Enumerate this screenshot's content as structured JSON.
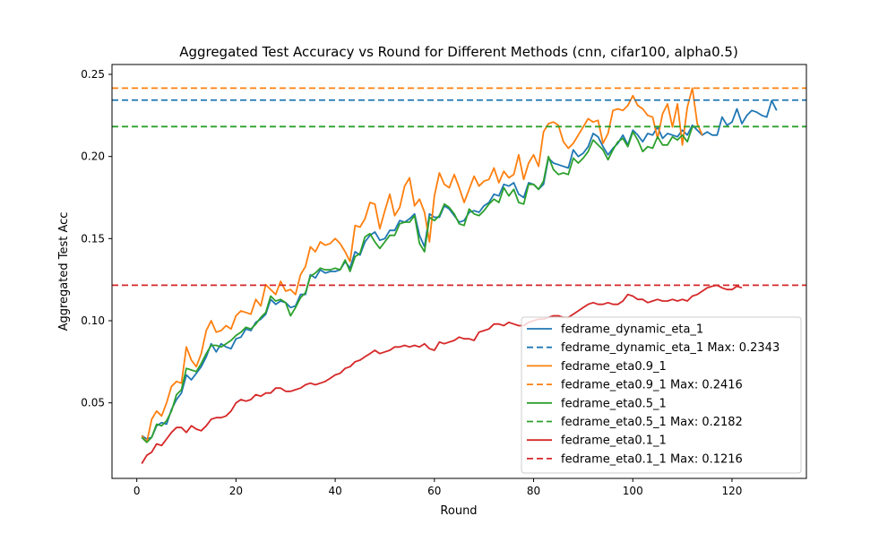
{
  "chart_data": {
    "type": "line",
    "title": "Aggregated Test Accuracy vs Round for Different Methods (cnn, cifar100, alpha0.5)",
    "xlabel": "Round",
    "ylabel": "Aggregated Test Acc",
    "xlim": [
      -5,
      135
    ],
    "ylim": [
      0.004,
      0.256
    ],
    "xticks": [
      0,
      20,
      40,
      60,
      80,
      100,
      120
    ],
    "yticks": [
      0.05,
      0.1,
      0.15,
      0.2,
      0.25
    ],
    "ytick_labels": [
      "0.05",
      "0.10",
      "0.15",
      "0.20",
      "0.25"
    ],
    "legend_position": "lower-right",
    "grid": false,
    "series": [
      {
        "name": "fedrame_dynamic_eta_1",
        "color": "#1f77b4",
        "max_label": "fedrame_dynamic_eta_1 Max: 0.2343",
        "max": 0.2343,
        "y": [
          0.03,
          0.028,
          0.029,
          0.036,
          0.038,
          0.037,
          0.046,
          0.052,
          0.056,
          0.067,
          0.064,
          0.068,
          0.072,
          0.078,
          0.086,
          0.081,
          0.086,
          0.084,
          0.083,
          0.089,
          0.09,
          0.095,
          0.094,
          0.099,
          0.101,
          0.104,
          0.113,
          0.11,
          0.112,
          0.111,
          0.108,
          0.109,
          0.116,
          0.116,
          0.128,
          0.126,
          0.131,
          0.129,
          0.13,
          0.13,
          0.131,
          0.136,
          0.132,
          0.142,
          0.14,
          0.148,
          0.152,
          0.154,
          0.149,
          0.15,
          0.155,
          0.155,
          0.161,
          0.16,
          0.162,
          0.165,
          0.152,
          0.145,
          0.165,
          0.163,
          0.163,
          0.17,
          0.168,
          0.164,
          0.16,
          0.161,
          0.166,
          0.167,
          0.166,
          0.17,
          0.172,
          0.177,
          0.176,
          0.183,
          0.182,
          0.184,
          0.177,
          0.175,
          0.184,
          0.183,
          0.18,
          0.183,
          0.199,
          0.196,
          0.195,
          0.194,
          0.193,
          0.204,
          0.2,
          0.202,
          0.206,
          0.214,
          0.212,
          0.206,
          0.201,
          0.205,
          0.208,
          0.213,
          0.207,
          0.216,
          0.213,
          0.209,
          0.214,
          0.213,
          0.218,
          0.211,
          0.214,
          0.213,
          0.212,
          0.216,
          0.213,
          0.219,
          0.216,
          0.213,
          0.215,
          0.213,
          0.213,
          0.224,
          0.219,
          0.221,
          0.229,
          0.22,
          0.225,
          0.228,
          0.227,
          0.225,
          0.224,
          0.234,
          0.228
        ]
      },
      {
        "name": "fedrame_eta0.9_1",
        "color": "#ff7f0e",
        "max_label": "fedrame_eta0.9_1 Max: 0.2416",
        "max": 0.2416,
        "y": [
          0.03,
          0.026,
          0.04,
          0.045,
          0.042,
          0.05,
          0.06,
          0.063,
          0.062,
          0.084,
          0.076,
          0.072,
          0.08,
          0.094,
          0.1,
          0.093,
          0.094,
          0.097,
          0.095,
          0.103,
          0.106,
          0.105,
          0.104,
          0.113,
          0.109,
          0.122,
          0.119,
          0.116,
          0.124,
          0.118,
          0.119,
          0.116,
          0.128,
          0.133,
          0.145,
          0.142,
          0.148,
          0.146,
          0.147,
          0.15,
          0.147,
          0.142,
          0.136,
          0.158,
          0.157,
          0.162,
          0.172,
          0.171,
          0.156,
          0.167,
          0.177,
          0.164,
          0.169,
          0.182,
          0.187,
          0.17,
          0.174,
          0.166,
          0.148,
          0.176,
          0.19,
          0.183,
          0.181,
          0.189,
          0.181,
          0.172,
          0.18,
          0.188,
          0.182,
          0.185,
          0.186,
          0.193,
          0.184,
          0.191,
          0.187,
          0.189,
          0.201,
          0.186,
          0.196,
          0.201,
          0.194,
          0.215,
          0.22,
          0.221,
          0.219,
          0.209,
          0.205,
          0.208,
          0.213,
          0.218,
          0.223,
          0.221,
          0.222,
          0.208,
          0.214,
          0.228,
          0.229,
          0.228,
          0.231,
          0.237,
          0.231,
          0.229,
          0.225,
          0.224,
          0.211,
          0.226,
          0.232,
          0.218,
          0.232,
          0.207,
          0.23,
          0.2416,
          0.22,
          0.213
        ]
      },
      {
        "name": "fedrame_eta0.5_1",
        "color": "#2ca02c",
        "max_label": "fedrame_eta0.5_1 Max: 0.2182",
        "max": 0.2182,
        "y": [
          0.029,
          0.026,
          0.029,
          0.037,
          0.036,
          0.039,
          0.045,
          0.055,
          0.058,
          0.071,
          0.07,
          0.069,
          0.074,
          0.08,
          0.085,
          0.085,
          0.084,
          0.086,
          0.088,
          0.091,
          0.093,
          0.096,
          0.095,
          0.098,
          0.102,
          0.105,
          0.115,
          0.112,
          0.113,
          0.111,
          0.103,
          0.108,
          0.114,
          0.117,
          0.127,
          0.129,
          0.132,
          0.131,
          0.131,
          0.132,
          0.131,
          0.137,
          0.13,
          0.139,
          0.141,
          0.151,
          0.153,
          0.148,
          0.144,
          0.148,
          0.152,
          0.152,
          0.159,
          0.16,
          0.16,
          0.164,
          0.147,
          0.142,
          0.163,
          0.161,
          0.164,
          0.171,
          0.169,
          0.165,
          0.159,
          0.158,
          0.168,
          0.165,
          0.164,
          0.167,
          0.171,
          0.174,
          0.172,
          0.181,
          0.176,
          0.18,
          0.172,
          0.171,
          0.183,
          0.183,
          0.18,
          0.185,
          0.2,
          0.192,
          0.189,
          0.19,
          0.189,
          0.199,
          0.196,
          0.199,
          0.203,
          0.21,
          0.207,
          0.204,
          0.198,
          0.204,
          0.209,
          0.211,
          0.206,
          0.215,
          0.21,
          0.203,
          0.206,
          0.205,
          0.212,
          0.207,
          0.207,
          0.212,
          0.21,
          0.213,
          0.209,
          0.218,
          0.2182
        ]
      },
      {
        "name": "fedrame_eta0.1_1",
        "color": "#d62728",
        "max_label": "fedrame_eta0.1_1 Max: 0.1216",
        "max": 0.1216,
        "y": [
          0.013,
          0.018,
          0.02,
          0.025,
          0.024,
          0.028,
          0.032,
          0.035,
          0.035,
          0.032,
          0.036,
          0.034,
          0.033,
          0.036,
          0.04,
          0.041,
          0.041,
          0.042,
          0.045,
          0.05,
          0.052,
          0.051,
          0.052,
          0.055,
          0.054,
          0.056,
          0.056,
          0.059,
          0.059,
          0.057,
          0.057,
          0.058,
          0.059,
          0.061,
          0.062,
          0.061,
          0.062,
          0.063,
          0.065,
          0.067,
          0.068,
          0.071,
          0.072,
          0.075,
          0.076,
          0.078,
          0.08,
          0.082,
          0.08,
          0.081,
          0.082,
          0.084,
          0.084,
          0.085,
          0.084,
          0.085,
          0.084,
          0.086,
          0.083,
          0.082,
          0.087,
          0.086,
          0.087,
          0.088,
          0.09,
          0.089,
          0.089,
          0.088,
          0.093,
          0.094,
          0.095,
          0.098,
          0.098,
          0.097,
          0.099,
          0.098,
          0.097,
          0.097,
          0.099,
          0.1,
          0.101,
          0.101,
          0.102,
          0.103,
          0.103,
          0.102,
          0.102,
          0.104,
          0.106,
          0.108,
          0.11,
          0.111,
          0.11,
          0.11,
          0.111,
          0.11,
          0.11,
          0.112,
          0.116,
          0.115,
          0.113,
          0.113,
          0.111,
          0.112,
          0.113,
          0.112,
          0.112,
          0.113,
          0.112,
          0.113,
          0.112,
          0.115,
          0.116,
          0.118,
          0.12,
          0.121,
          0.1216,
          0.12,
          0.119,
          0.119,
          0.121,
          0.12
        ]
      }
    ]
  }
}
